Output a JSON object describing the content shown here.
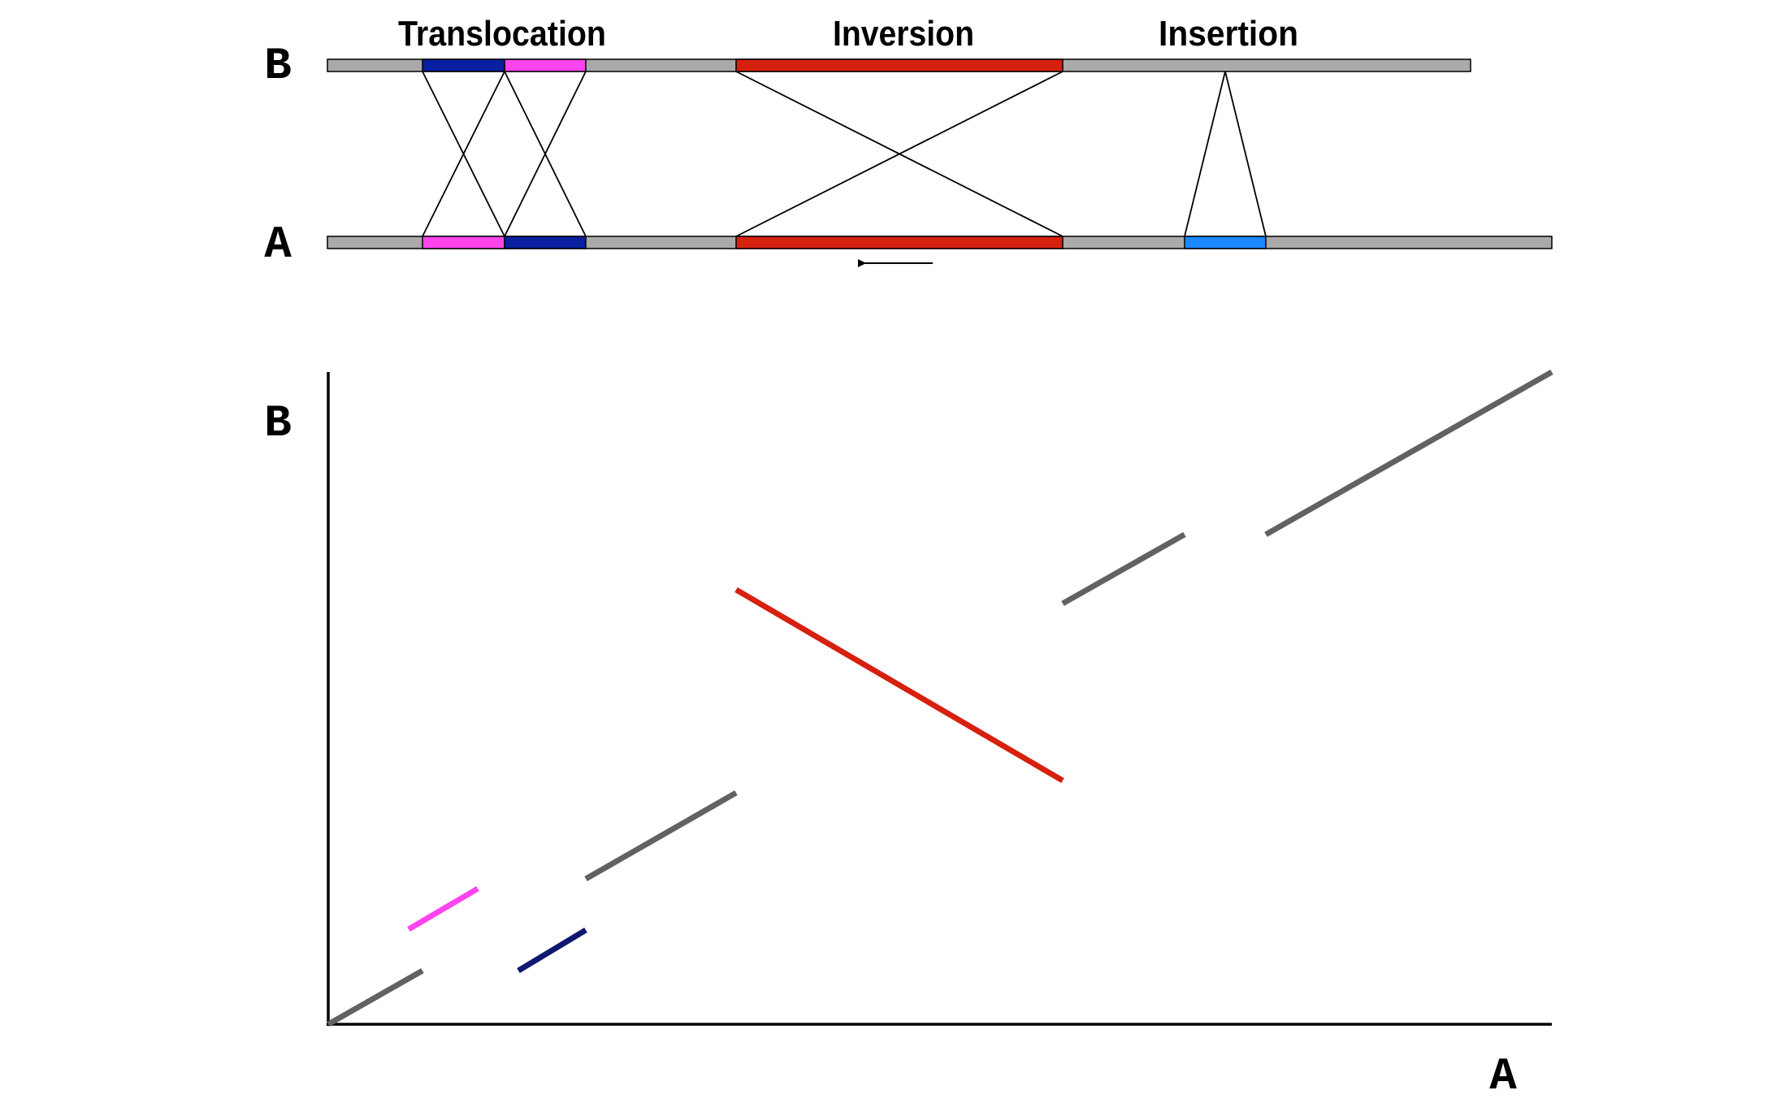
{
  "events": {
    "translocation": "Translocation",
    "inversion": "Inversion",
    "insertion": "Insertion"
  },
  "tracks": {
    "top_label": "B",
    "bottom_label": "A"
  },
  "plot": {
    "y_label": "B",
    "x_label": "A"
  },
  "colors": {
    "backbone": "#aaaaaa",
    "translocation_dark": "#0a1fa0",
    "translocation_light": "#ff44ee",
    "inversion": "#d62010",
    "insertion": "#1a88ff",
    "match_line": "#626262",
    "inverted_line": "#d62010",
    "pink_line": "#ff44ee",
    "navy_line": "#0e1870"
  },
  "icons": {
    "direction": "arrow-left-icon"
  }
}
